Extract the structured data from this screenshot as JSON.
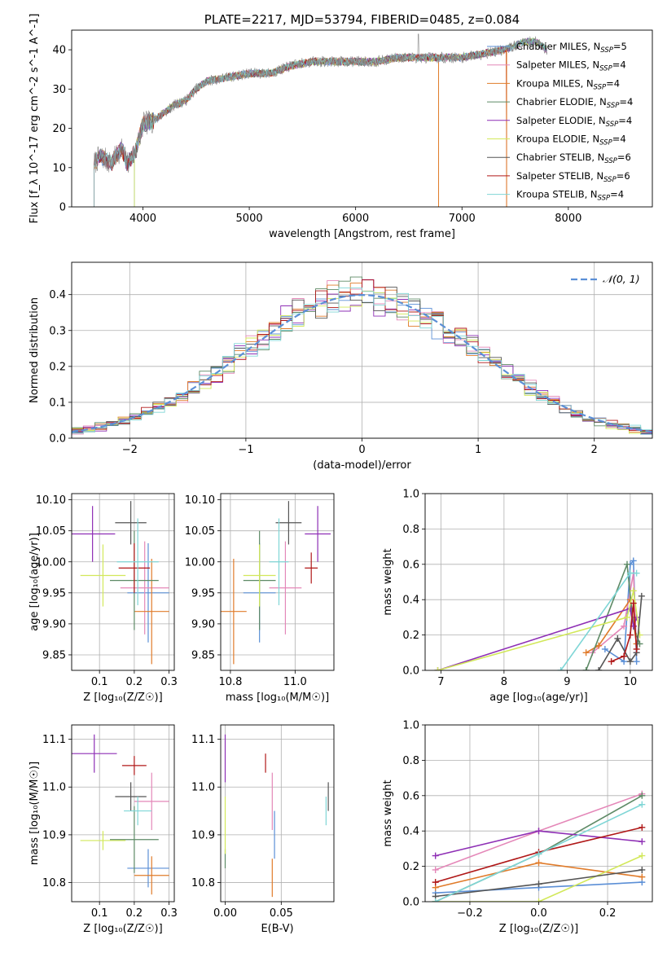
{
  "colors": {
    "chabrier_miles": "#5b8fd6",
    "salpeter_miles": "#e487b8",
    "kroupa_miles": "#e07b2a",
    "chabrier_elodie": "#5e8a66",
    "salpeter_elodie": "#8e2fb5",
    "kroupa_elodie": "#d2e85a",
    "chabrier_stelib": "#555555",
    "salpeter_stelib": "#b01818",
    "kroupa_stelib": "#7fd6d6",
    "grid": "#b0b0b0",
    "normal_curve": "#5b8fd6"
  },
  "chart_data": [
    {
      "id": "spectrum",
      "type": "line",
      "title": "PLATE=2217, MJD=53794, FIBERID=0485, z=0.084",
      "xlabel": "wavelength [Angstrom, rest frame]",
      "ylabel": "Flux [f_λ 10^-17 erg cm^-2 s^-1 A^-1]",
      "xlim": [
        3330,
        8790
      ],
      "ylim": [
        0,
        45
      ],
      "xticks": [
        4000,
        5000,
        6000,
        7000,
        8000
      ],
      "yticks": [
        0,
        10,
        20,
        30,
        40
      ],
      "grid": false,
      "legend_position": "upper right",
      "legend": [
        {
          "label": "Chabrier MILES, N",
          "sub": "SSP",
          "suffix": "=5",
          "color_key": "chabrier_miles"
        },
        {
          "label": "Salpeter MILES, N",
          "sub": "SSP",
          "suffix": "=4",
          "color_key": "salpeter_miles"
        },
        {
          "label": "Kroupa MILES, N",
          "sub": "SSP",
          "suffix": "=4",
          "color_key": "kroupa_miles"
        },
        {
          "label": "Chabrier ELODIE, N",
          "sub": "SSP",
          "suffix": "=4",
          "color_key": "chabrier_elodie"
        },
        {
          "label": "Salpeter ELODIE, N",
          "sub": "SSP",
          "suffix": "=4",
          "color_key": "salpeter_elodie"
        },
        {
          "label": "Kroupa ELODIE, N",
          "sub": "SSP",
          "suffix": "=4",
          "color_key": "kroupa_elodie"
        },
        {
          "label": "Chabrier STELIB, N",
          "sub": "SSP",
          "suffix": "=6",
          "color_key": "chabrier_stelib"
        },
        {
          "label": "Salpeter STELIB, N",
          "sub": "SSP",
          "suffix": "=6",
          "color_key": "salpeter_stelib"
        },
        {
          "label": "Kroupa STELIB, N",
          "sub": "SSP",
          "suffix": "=4",
          "color_key": "kroupa_stelib"
        }
      ],
      "anchors": [
        [
          3540,
          11
        ],
        [
          3600,
          13
        ],
        [
          3700,
          11
        ],
        [
          3800,
          15
        ],
        [
          3850,
          11
        ],
        [
          3930,
          14
        ],
        [
          4000,
          21
        ],
        [
          4100,
          22
        ],
        [
          4200,
          24
        ],
        [
          4300,
          26
        ],
        [
          4400,
          27
        ],
        [
          4500,
          30
        ],
        [
          4600,
          32
        ],
        [
          4800,
          33
        ],
        [
          5000,
          34
        ],
        [
          5200,
          34
        ],
        [
          5400,
          36
        ],
        [
          5600,
          37
        ],
        [
          5800,
          37
        ],
        [
          6000,
          37
        ],
        [
          6200,
          37
        ],
        [
          6400,
          38
        ],
        [
          6600,
          38
        ],
        [
          6800,
          38
        ],
        [
          7000,
          38
        ],
        [
          7200,
          39
        ],
        [
          7400,
          40
        ],
        [
          7500,
          41
        ],
        [
          7600,
          42
        ],
        [
          7700,
          42
        ],
        [
          7800,
          40
        ]
      ],
      "model_starts": [
        3540,
        3540,
        3540,
        3920,
        3540,
        3920,
        3540,
        3540,
        3540
      ],
      "model_ends": [
        7800,
        7800,
        7420,
        7800,
        7800,
        7800,
        7800,
        7420,
        7800
      ],
      "dropouts": [
        {
          "x": 6780,
          "drop_to": 0
        },
        {
          "x": 7420,
          "drop_to": 0
        }
      ],
      "data_spike": {
        "x": 6590,
        "y": 44
      }
    },
    {
      "id": "residual-histogram",
      "type": "histogram",
      "xlabel": "(data-model)/error",
      "ylabel": "Normed distribution",
      "xlim": [
        -2.5,
        2.5
      ],
      "ylim": [
        0,
        0.49
      ],
      "xticks": [
        -2,
        -1,
        0,
        1,
        2
      ],
      "yticks": [
        0.0,
        0.1,
        0.2,
        0.3,
        0.4
      ],
      "grid": true,
      "legend_position": "upper right",
      "legend": [
        {
          "label": "𝒩(0, 1)",
          "style": "dashed",
          "color_key": "normal_curve"
        }
      ],
      "bin_width": 0.1
    },
    {
      "id": "age-vs-z",
      "type": "errorbar",
      "xlabel": "Z [log₁₀(Z/Z☉)]",
      "ylabel": "age  [log₁₀(age/yr)]",
      "xlim": [
        0.02,
        0.315
      ],
      "ylim": [
        9.825,
        10.11
      ],
      "xticks": [
        0.1,
        0.2,
        0.3
      ],
      "yticks": [
        9.85,
        9.9,
        9.95,
        10.0,
        10.05,
        10.1
      ],
      "grid": true,
      "points": [
        {
          "c": "chabrier_miles",
          "x": 0.24,
          "y": 9.95,
          "xerr": 0.06,
          "yerr": 0.08
        },
        {
          "c": "salpeter_miles",
          "x": 0.23,
          "y": 9.958,
          "xerr": 0.07,
          "yerr": 0.075
        },
        {
          "c": "kroupa_miles",
          "x": 0.25,
          "y": 9.92,
          "xerr": 0.05,
          "yerr": 0.085
        },
        {
          "c": "chabrier_elodie",
          "x": 0.2,
          "y": 9.97,
          "xerr": 0.07,
          "yerr": 0.08
        },
        {
          "c": "salpeter_elodie",
          "x": 0.08,
          "y": 10.045,
          "xerr": 0.065,
          "yerr": 0.045
        },
        {
          "c": "kroupa_elodie",
          "x": 0.11,
          "y": 9.978,
          "xerr": 0.065,
          "yerr": 0.05
        },
        {
          "c": "chabrier_stelib",
          "x": 0.19,
          "y": 10.063,
          "xerr": 0.045,
          "yerr": 0.035
        },
        {
          "c": "salpeter_stelib",
          "x": 0.2,
          "y": 9.99,
          "xerr": 0.045,
          "yerr": 0.04
        },
        {
          "c": "kroupa_stelib",
          "x": 0.21,
          "y": 10.0,
          "xerr": 0.06,
          "yerr": 0.07
        }
      ]
    },
    {
      "id": "age-vs-mass",
      "type": "errorbar",
      "xlabel": "mass [log₁₀(M/M☉)]",
      "ylabel": "",
      "xlim": [
        10.77,
        11.12
      ],
      "ylim": [
        9.825,
        10.11
      ],
      "xticks": [
        10.8,
        11.0
      ],
      "yticks": [
        9.85,
        9.9,
        9.95,
        10.0,
        10.05,
        10.1
      ],
      "grid": true,
      "points": [
        {
          "c": "chabrier_miles",
          "x": 10.89,
          "y": 9.95,
          "xerr": 0.05,
          "yerr": 0.08
        },
        {
          "c": "salpeter_miles",
          "x": 10.97,
          "y": 9.958,
          "xerr": 0.05,
          "yerr": 0.075
        },
        {
          "c": "kroupa_miles",
          "x": 10.81,
          "y": 9.92,
          "xerr": 0.04,
          "yerr": 0.085
        },
        {
          "c": "chabrier_elodie",
          "x": 10.89,
          "y": 9.97,
          "xerr": 0.05,
          "yerr": 0.08
        },
        {
          "c": "salpeter_elodie",
          "x": 11.07,
          "y": 10.045,
          "xerr": 0.04,
          "yerr": 0.045
        },
        {
          "c": "kroupa_elodie",
          "x": 10.89,
          "y": 9.978,
          "xerr": 0.05,
          "yerr": 0.05
        },
        {
          "c": "chabrier_stelib",
          "x": 10.98,
          "y": 10.063,
          "xerr": 0.04,
          "yerr": 0.035
        },
        {
          "c": "salpeter_stelib",
          "x": 11.05,
          "y": 9.99,
          "xerr": 0.02,
          "yerr": 0.025
        },
        {
          "c": "kroupa_stelib",
          "x": 10.95,
          "y": 10.0,
          "xerr": 0.03,
          "yerr": 0.07
        }
      ]
    },
    {
      "id": "mass-weight-vs-age",
      "type": "line",
      "xlabel": "age  [log₁₀(age/yr)]",
      "ylabel": "mass weight",
      "xlim": [
        6.75,
        10.35
      ],
      "ylim": [
        0,
        1.0
      ],
      "xticks": [
        7,
        8,
        9,
        10
      ],
      "yticks": [
        0.0,
        0.2,
        0.4,
        0.6,
        0.8,
        1.0
      ],
      "grid": true,
      "series": [
        {
          "c": "chabrier_miles",
          "x": [
            9.6,
            9.9,
            10.0,
            10.05,
            10.1
          ],
          "y": [
            0.12,
            0.05,
            0.6,
            0.62,
            0.05
          ]
        },
        {
          "c": "salpeter_miles",
          "x": [
            9.4,
            9.9,
            10.05,
            10.1
          ],
          "y": [
            0.1,
            0.25,
            0.55,
            0.1
          ]
        },
        {
          "c": "kroupa_miles",
          "x": [
            9.3,
            9.5,
            10.0,
            10.1
          ],
          "y": [
            0.1,
            0.14,
            0.4,
            0.15
          ]
        },
        {
          "c": "chabrier_elodie",
          "x": [
            9.3,
            9.95,
            10.05,
            10.15
          ],
          "y": [
            0.0,
            0.6,
            0.25,
            0.15
          ]
        },
        {
          "c": "salpeter_elodie",
          "x": [
            6.95,
            10.0,
            10.05,
            10.1
          ],
          "y": [
            0.0,
            0.35,
            0.25,
            0.3
          ]
        },
        {
          "c": "kroupa_elodie",
          "x": [
            6.95,
            9.95,
            10.05,
            10.15
          ],
          "y": [
            0.0,
            0.3,
            0.45,
            0.2
          ]
        },
        {
          "c": "chabrier_stelib",
          "x": [
            9.5,
            9.8,
            10.0,
            10.1,
            10.18
          ],
          "y": [
            0.0,
            0.18,
            0.05,
            0.1,
            0.42
          ]
        },
        {
          "c": "salpeter_stelib",
          "x": [
            9.7,
            9.9,
            10.0,
            10.05,
            10.1
          ],
          "y": [
            0.05,
            0.08,
            0.2,
            0.38,
            0.12
          ]
        },
        {
          "c": "kroupa_stelib",
          "x": [
            8.9,
            10.0,
            10.1
          ],
          "y": [
            0.0,
            0.55,
            0.55
          ]
        }
      ]
    },
    {
      "id": "mass-vs-z",
      "type": "errorbar",
      "xlabel": "Z [log₁₀(Z/Z☉)]",
      "ylabel": "mass [log₁₀(M/M☉)]",
      "xlim": [
        0.02,
        0.315
      ],
      "ylim": [
        10.76,
        11.13
      ],
      "xticks": [
        0.1,
        0.2,
        0.3
      ],
      "yticks": [
        10.8,
        10.9,
        11.0,
        11.1
      ],
      "grid": true,
      "points": [
        {
          "c": "chabrier_miles",
          "x": 0.24,
          "y": 10.83,
          "xerr": 0.06,
          "yerr": 0.04
        },
        {
          "c": "salpeter_miles",
          "x": 0.25,
          "y": 10.97,
          "xerr": 0.05,
          "yerr": 0.06
        },
        {
          "c": "kroupa_miles",
          "x": 0.25,
          "y": 10.815,
          "xerr": 0.05,
          "yerr": 0.04
        },
        {
          "c": "chabrier_elodie",
          "x": 0.2,
          "y": 10.89,
          "xerr": 0.07,
          "yerr": 0.07
        },
        {
          "c": "salpeter_elodie",
          "x": 0.085,
          "y": 11.07,
          "xerr": 0.065,
          "yerr": 0.04
        },
        {
          "c": "kroupa_elodie",
          "x": 0.11,
          "y": 10.888,
          "xerr": 0.065,
          "yerr": 0.02
        },
        {
          "c": "chabrier_stelib",
          "x": 0.19,
          "y": 10.98,
          "xerr": 0.045,
          "yerr": 0.03
        },
        {
          "c": "salpeter_stelib",
          "x": 0.2,
          "y": 11.045,
          "xerr": 0.035,
          "yerr": 0.02
        },
        {
          "c": "kroupa_stelib",
          "x": 0.21,
          "y": 10.95,
          "xerr": 0.04,
          "yerr": 0.03
        }
      ]
    },
    {
      "id": "mass-vs-ebv",
      "type": "errorbar",
      "xlabel": "E(B-V)",
      "ylabel": "",
      "xlim": [
        -0.004,
        0.097
      ],
      "ylim": [
        10.76,
        11.13
      ],
      "xticks": [
        0.0,
        0.05
      ],
      "yticks": [
        10.8,
        10.9,
        11.0,
        11.1
      ],
      "grid": true,
      "points": [
        {
          "c": "chabrier_miles",
          "x": 0.044,
          "y": 10.9,
          "xerr": 0,
          "yerr": 0.05
        },
        {
          "c": "salpeter_miles",
          "x": 0.042,
          "y": 10.97,
          "xerr": 0,
          "yerr": 0.06
        },
        {
          "c": "kroupa_miles",
          "x": 0.042,
          "y": 10.81,
          "xerr": 0,
          "yerr": 0.04
        },
        {
          "c": "chabrier_elodie",
          "x": 0.0,
          "y": 10.85,
          "xerr": 0,
          "yerr": 0.02
        },
        {
          "c": "salpeter_elodie",
          "x": 0.0,
          "y": 11.06,
          "xerr": 0,
          "yerr": 0.05
        },
        {
          "c": "kroupa_elodie",
          "x": 0.0,
          "y": 10.92,
          "xerr": 0,
          "yerr": 0.06
        },
        {
          "c": "chabrier_stelib",
          "x": 0.092,
          "y": 10.98,
          "xerr": 0,
          "yerr": 0.03
        },
        {
          "c": "salpeter_stelib",
          "x": 0.036,
          "y": 11.05,
          "xerr": 0,
          "yerr": 0.02
        },
        {
          "c": "kroupa_stelib",
          "x": 0.09,
          "y": 10.95,
          "xerr": 0,
          "yerr": 0.03
        }
      ]
    },
    {
      "id": "mass-weight-vs-z",
      "type": "line",
      "xlabel": "Z [log₁₀(Z/Z☉)]",
      "ylabel": "mass weight",
      "xlim": [
        -0.33,
        0.33
      ],
      "ylim": [
        0,
        1.0
      ],
      "xticks": [
        -0.2,
        0.0,
        0.2
      ],
      "yticks": [
        0.0,
        0.2,
        0.4,
        0.6,
        0.8,
        1.0
      ],
      "grid": true,
      "series": [
        {
          "c": "chabrier_miles",
          "x": [
            -0.3,
            0.0,
            0.3
          ],
          "y": [
            0.05,
            0.08,
            0.11
          ]
        },
        {
          "c": "salpeter_miles",
          "x": [
            -0.3,
            0.0,
            0.3
          ],
          "y": [
            0.18,
            0.4,
            0.61
          ]
        },
        {
          "c": "kroupa_miles",
          "x": [
            -0.3,
            0.0,
            0.3
          ],
          "y": [
            0.08,
            0.22,
            0.14
          ]
        },
        {
          "c": "chabrier_elodie",
          "x": [
            -0.3,
            0.0,
            0.3
          ],
          "y": [
            0.0,
            0.27,
            0.6
          ]
        },
        {
          "c": "salpeter_elodie",
          "x": [
            -0.3,
            0.0,
            0.3
          ],
          "y": [
            0.26,
            0.4,
            0.34
          ]
        },
        {
          "c": "kroupa_elodie",
          "x": [
            -0.3,
            0.0,
            0.3
          ],
          "y": [
            0.0,
            0.0,
            0.26
          ]
        },
        {
          "c": "chabrier_stelib",
          "x": [
            -0.3,
            0.0,
            0.3
          ],
          "y": [
            0.03,
            0.1,
            0.18
          ]
        },
        {
          "c": "salpeter_stelib",
          "x": [
            -0.3,
            0.0,
            0.3
          ],
          "y": [
            0.11,
            0.28,
            0.42
          ]
        },
        {
          "c": "kroupa_stelib",
          "x": [
            -0.3,
            0.0,
            0.3
          ],
          "y": [
            0.0,
            0.27,
            0.55
          ]
        }
      ]
    }
  ]
}
